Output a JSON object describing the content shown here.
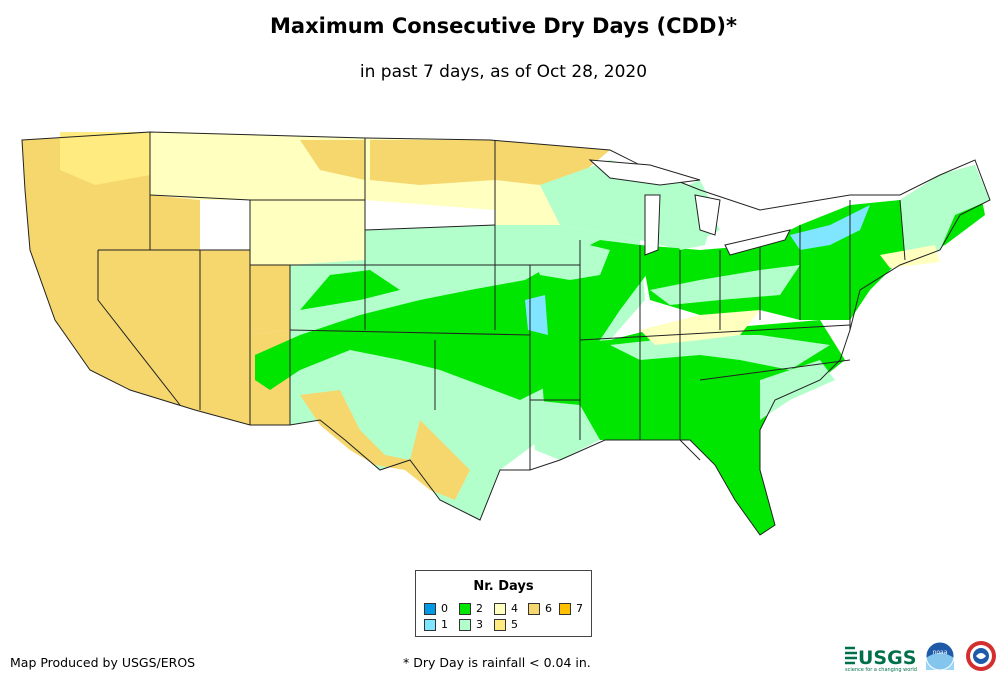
{
  "title": "Maximum Consecutive Dry Days (CDD)*",
  "subtitle": "in past 7 days, as of Oct 28, 2020",
  "legend": {
    "title": "Nr. Days",
    "items": [
      {
        "label": "0",
        "color": "#0099e6"
      },
      {
        "label": "1",
        "color": "#80e5ff"
      },
      {
        "label": "2",
        "color": "#00e600"
      },
      {
        "label": "3",
        "color": "#b3ffcc"
      },
      {
        "label": "4",
        "color": "#ffffc0"
      },
      {
        "label": "5",
        "color": "#ffeb80"
      },
      {
        "label": "6",
        "color": "#f5d76e"
      },
      {
        "label": "7",
        "color": "#ffc000"
      }
    ]
  },
  "credit": "Map Produced by USGS/EROS",
  "footnote": "* Dry Day is rainfall < 0.04 in.",
  "logos": {
    "usgs_name": "USGS",
    "usgs_tagline": "science for a changing world",
    "noaa_name": "noaa",
    "nws_name": "National Weather Service"
  }
}
